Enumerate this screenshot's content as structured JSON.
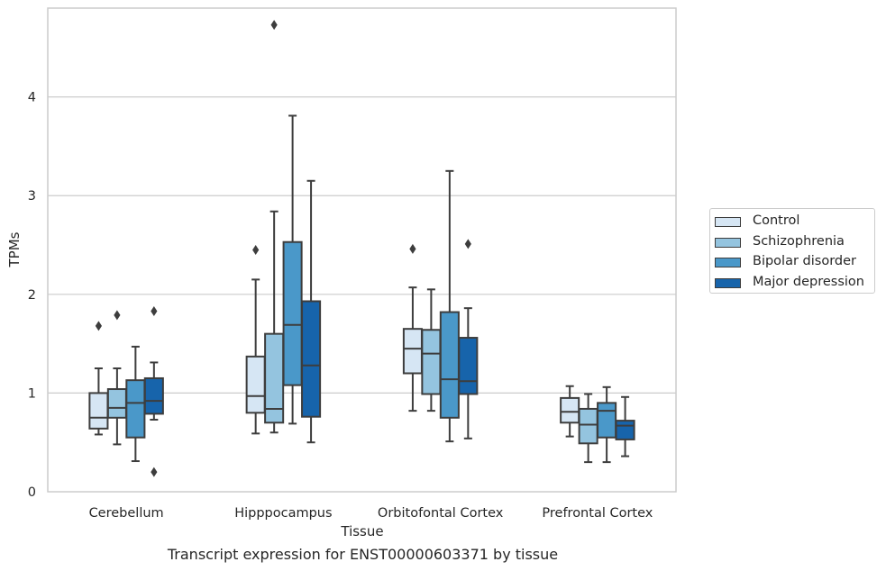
{
  "caption": "Transcript expression for ENST00000603371 by tissue",
  "chart_data": {
    "type": "boxplot",
    "xlabel": "Tissue",
    "ylabel": "TPMs",
    "ylim": [
      0,
      4.9
    ],
    "yticks": [
      0,
      1,
      2,
      3,
      4
    ],
    "grid": true,
    "legend_position": "right",
    "categories": [
      "Cerebellum",
      "Hipppocampus",
      "Orbitofontal Cortex",
      "Prefrontal Cortex"
    ],
    "series": [
      {
        "name": "Control",
        "color": "#d6e6f4",
        "boxes": [
          {
            "whislo": 0.58,
            "q1": 0.64,
            "med": 0.75,
            "q3": 1.0,
            "whishi": 1.25,
            "fliers": [
              1.68
            ]
          },
          {
            "whislo": 0.59,
            "q1": 0.8,
            "med": 0.97,
            "q3": 1.37,
            "whishi": 2.15,
            "fliers": [
              2.45
            ]
          },
          {
            "whislo": 0.82,
            "q1": 1.2,
            "med": 1.45,
            "q3": 1.65,
            "whishi": 2.07,
            "fliers": [
              2.46
            ]
          },
          {
            "whislo": 0.56,
            "q1": 0.7,
            "med": 0.81,
            "q3": 0.95,
            "whishi": 1.07,
            "fliers": []
          }
        ]
      },
      {
        "name": "Schizophrenia",
        "color": "#94c4df",
        "boxes": [
          {
            "whislo": 0.48,
            "q1": 0.75,
            "med": 0.85,
            "q3": 1.04,
            "whishi": 1.25,
            "fliers": [
              1.79
            ]
          },
          {
            "whislo": 0.6,
            "q1": 0.7,
            "med": 0.84,
            "q3": 1.6,
            "whishi": 2.84,
            "fliers": [
              4.73
            ]
          },
          {
            "whislo": 0.82,
            "q1": 0.99,
            "med": 1.4,
            "q3": 1.64,
            "whishi": 2.05,
            "fliers": []
          },
          {
            "whislo": 0.3,
            "q1": 0.49,
            "med": 0.68,
            "q3": 0.84,
            "whishi": 0.99,
            "fliers": []
          }
        ]
      },
      {
        "name": "Bipolar disorder",
        "color": "#4a98c9",
        "boxes": [
          {
            "whislo": 0.31,
            "q1": 0.55,
            "med": 0.9,
            "q3": 1.13,
            "whishi": 1.47,
            "fliers": []
          },
          {
            "whislo": 0.69,
            "q1": 1.08,
            "med": 1.69,
            "q3": 2.53,
            "whishi": 3.81,
            "fliers": []
          },
          {
            "whislo": 0.51,
            "q1": 0.75,
            "med": 1.14,
            "q3": 1.82,
            "whishi": 3.25,
            "fliers": []
          },
          {
            "whislo": 0.3,
            "q1": 0.55,
            "med": 0.82,
            "q3": 0.9,
            "whishi": 1.06,
            "fliers": []
          }
        ]
      },
      {
        "name": "Major depression",
        "color": "#1764ab",
        "boxes": [
          {
            "whislo": 0.73,
            "q1": 0.79,
            "med": 0.92,
            "q3": 1.15,
            "whishi": 1.31,
            "fliers": [
              1.83,
              0.2
            ]
          },
          {
            "whislo": 0.5,
            "q1": 0.76,
            "med": 1.28,
            "q3": 1.93,
            "whishi": 3.15,
            "fliers": []
          },
          {
            "whislo": 0.54,
            "q1": 0.99,
            "med": 1.12,
            "q3": 1.56,
            "whishi": 1.86,
            "fliers": [
              2.51
            ]
          },
          {
            "whislo": 0.36,
            "q1": 0.53,
            "med": 0.67,
            "q3": 0.72,
            "whishi": 0.96,
            "fliers": []
          }
        ]
      }
    ]
  }
}
